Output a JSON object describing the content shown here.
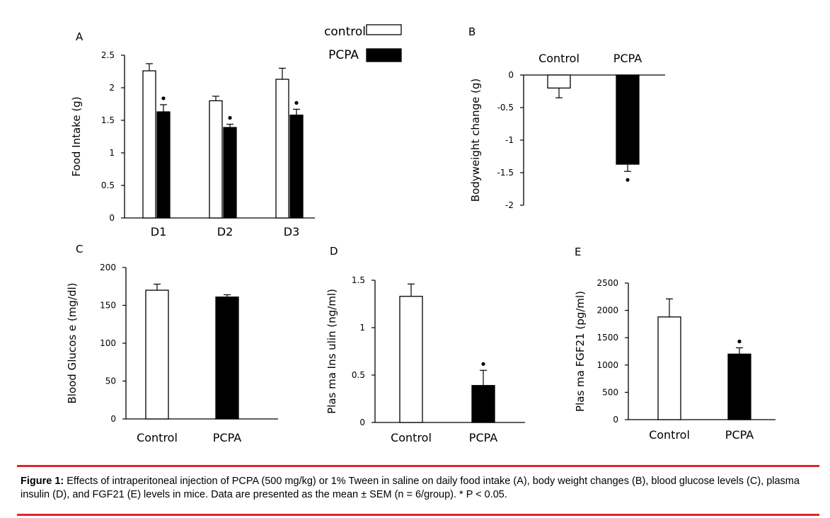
{
  "legend": {
    "control_label": "control",
    "pcpa_label": "PCPA"
  },
  "caption": {
    "label": "Figure 1:",
    "text": "Effects of intraperitoneal injection of PCPA (500 mg/kg) or 1% Tween in saline on daily food intake (A), body weight changes (B), blood glucose levels (C), plasma insulin (D), and FGF21 (E) levels in mice. Data are presented as the mean ± SEM (n = 6/group). * P < 0.05."
  },
  "colors": {
    "control": "#ffffff",
    "pcpa": "#000000",
    "accent_rule": "#e0262b"
  },
  "chart_data": [
    {
      "panel": "A",
      "type": "bar",
      "ylabel": "Food Intake (g)",
      "categories": [
        "D1",
        "D2",
        "D3"
      ],
      "series": [
        {
          "name": "control",
          "values": [
            2.26,
            1.8,
            2.13
          ],
          "errors": [
            0.11,
            0.07,
            0.17
          ],
          "significant": [
            false,
            false,
            false
          ]
        },
        {
          "name": "PCPA",
          "values": [
            1.63,
            1.39,
            1.58
          ],
          "errors": [
            0.11,
            0.05,
            0.09
          ],
          "significant": [
            true,
            true,
            true
          ]
        }
      ],
      "ylim": [
        0,
        2.5
      ],
      "yticks": [
        "0",
        "0.5",
        "1",
        "1.5",
        "2",
        "2.5"
      ]
    },
    {
      "panel": "B",
      "type": "bar",
      "ylabel": "Bodyweight change (g)",
      "categories": [
        "Control",
        "PCPA"
      ],
      "values": [
        -0.2,
        -1.37
      ],
      "errors": [
        0.15,
        0.11
      ],
      "significant": [
        false,
        true
      ],
      "ylim": [
        -2,
        0
      ],
      "yticks": [
        "0",
        "-0.5",
        "-1",
        "-1.5",
        "-2"
      ]
    },
    {
      "panel": "C",
      "type": "bar",
      "ylabel": "Blood Glucos e (mg/dl)",
      "categories": [
        "Control",
        "PCPA"
      ],
      "values": [
        170,
        161
      ],
      "errors": [
        8,
        3
      ],
      "significant": [
        false,
        false
      ],
      "ylim": [
        0,
        200
      ],
      "yticks": [
        "0",
        "50",
        "100",
        "150",
        "200"
      ]
    },
    {
      "panel": "D",
      "type": "bar",
      "ylabel": "Plas ma Ins ulin (ng/ml)",
      "categories": [
        "Control",
        "PCPA"
      ],
      "values": [
        1.33,
        0.39
      ],
      "errors": [
        0.13,
        0.16
      ],
      "significant": [
        false,
        true
      ],
      "ylim": [
        0,
        1.5
      ],
      "yticks": [
        "0",
        "0.5",
        "1",
        "1.5"
      ]
    },
    {
      "panel": "E",
      "type": "bar",
      "ylabel": "Plas ma FGF21 (pg/ml)",
      "categories": [
        "Control",
        "PCPA"
      ],
      "values": [
        1880,
        1200
      ],
      "errors": [
        330,
        115
      ],
      "significant": [
        false,
        true
      ],
      "ylim": [
        0,
        2500
      ],
      "yticks": [
        "0",
        "500",
        "1000",
        "1500",
        "2000",
        "2500"
      ]
    }
  ]
}
